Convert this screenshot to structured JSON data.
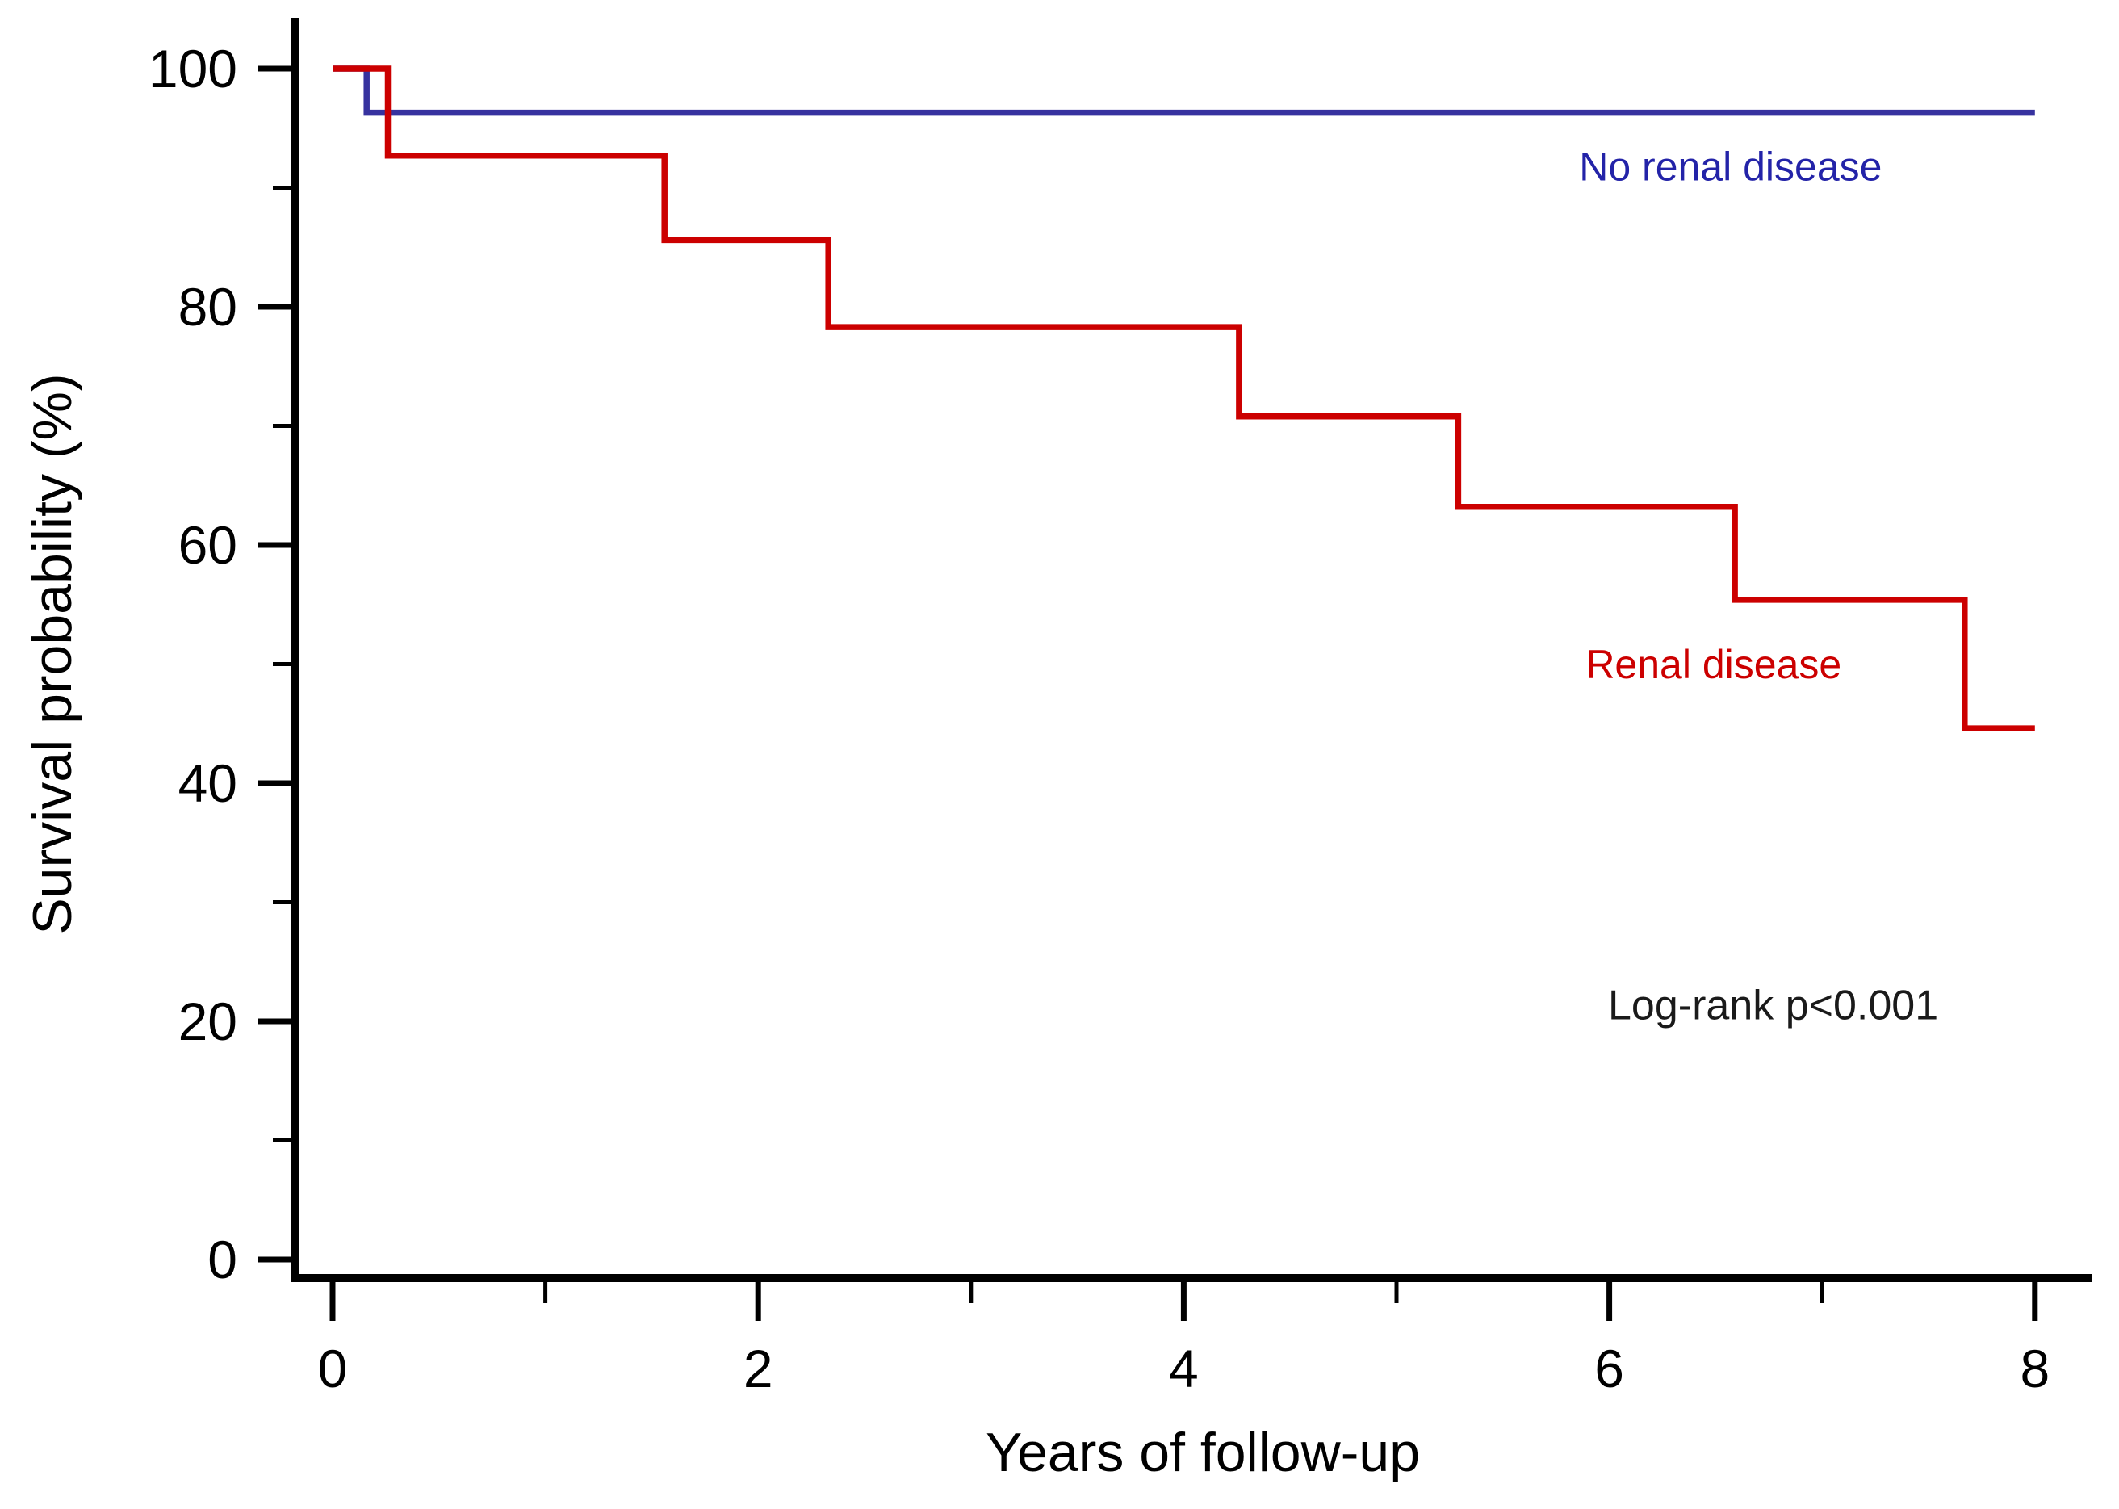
{
  "chart_data": {
    "type": "line",
    "subtype": "kaplan-meier-step",
    "title": "",
    "xlabel": "Years of follow-up",
    "ylabel": "Survival probability (%)",
    "xlim": [
      0,
      8
    ],
    "ylim": [
      0,
      100
    ],
    "x_major_ticks": [
      0,
      2,
      4,
      6,
      8
    ],
    "x_minor_ticks": [
      1,
      3,
      5,
      7
    ],
    "y_major_ticks": [
      0,
      20,
      40,
      60,
      80,
      100
    ],
    "y_minor_ticks": [
      10,
      30,
      50,
      70,
      90
    ],
    "grid": false,
    "legend_position": "inline-labels",
    "axis_color": "#000000",
    "tick_label_color": "#000000",
    "annotation": {
      "text": "Log-rank p<0.001",
      "x": 6.77,
      "y": 21.4,
      "color": "#1a1a1a"
    },
    "series": [
      {
        "name": "No renal disease",
        "color": "#37329f",
        "label_color": "#2323a8",
        "label_x": 6.57,
        "label_y": 91.8,
        "points": [
          [
            0,
            100
          ],
          [
            0.16,
            100
          ],
          [
            0.16,
            96.3
          ],
          [
            8,
            96.3
          ]
        ]
      },
      {
        "name": "Renal disease",
        "color": "#cc0000",
        "label_color": "#cc0000",
        "label_x": 6.49,
        "label_y": 50.0,
        "points": [
          [
            0,
            100
          ],
          [
            0.26,
            100
          ],
          [
            0.26,
            92.7
          ],
          [
            1.56,
            92.7
          ],
          [
            1.56,
            85.6
          ],
          [
            2.33,
            85.6
          ],
          [
            2.33,
            78.3
          ],
          [
            4.26,
            78.3
          ],
          [
            4.26,
            70.8
          ],
          [
            5.29,
            70.8
          ],
          [
            5.29,
            63.2
          ],
          [
            6.59,
            63.2
          ],
          [
            6.59,
            55.4
          ],
          [
            7.67,
            55.4
          ],
          [
            7.67,
            44.6
          ],
          [
            8,
            44.6
          ]
        ]
      }
    ]
  }
}
